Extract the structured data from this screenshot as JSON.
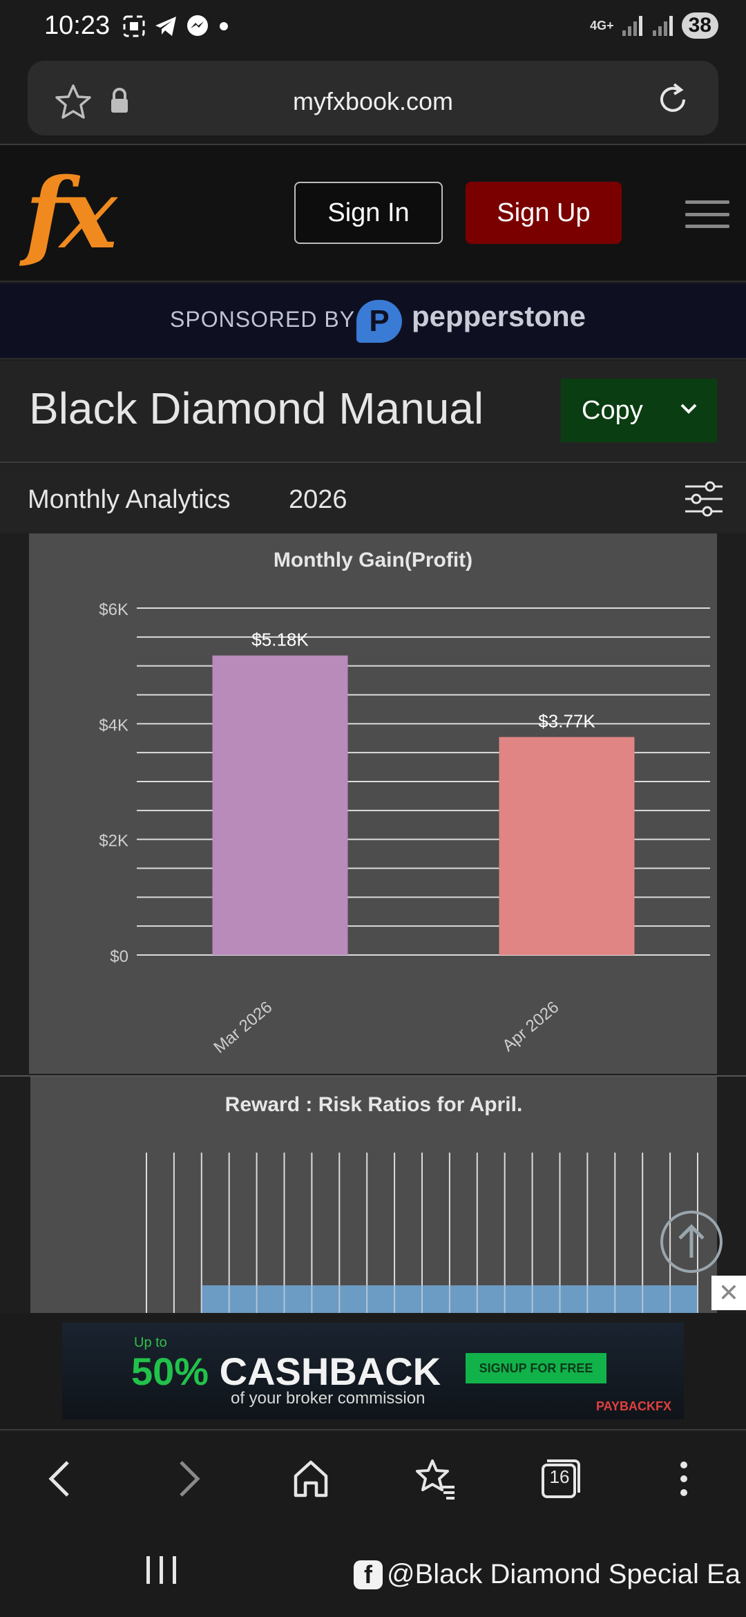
{
  "status": {
    "time": "10:23",
    "network": "4G+",
    "battery": "38"
  },
  "browser": {
    "url": "myfxbook.com",
    "tab_count": "16"
  },
  "header": {
    "logo": "fx",
    "sign_in": "Sign In",
    "sign_up": "Sign Up"
  },
  "sponsor": {
    "label": "SPONSORED BY",
    "brand": "pepperstone"
  },
  "page": {
    "title": "Black Diamond Manual",
    "copy_label": "Copy"
  },
  "analytics": {
    "label": "Monthly Analytics",
    "year": "2026"
  },
  "chart_data": [
    {
      "type": "bar",
      "title": "Monthly Gain(Profit)",
      "categories": [
        "Mar 2026",
        "Apr 2026"
      ],
      "values": [
        5180,
        3770
      ],
      "value_labels": [
        "$5.18K",
        "$3.77K"
      ],
      "ylim": [
        0,
        6000
      ],
      "y_ticks": [
        0,
        2000,
        4000,
        6000
      ],
      "y_tick_labels": [
        "$0",
        "$2K",
        "$4K",
        "$6K"
      ],
      "colors": [
        "#b88bbb",
        "#e08584"
      ],
      "grid": true
    },
    {
      "type": "bar",
      "title": "Reward : Risk Ratios for April.",
      "grid": true,
      "colors": [
        "#6e9fc9"
      ]
    }
  ],
  "ad": {
    "upto": "Up to",
    "headline_green": "50%",
    "headline_white": "CASHBACK",
    "subline": "of your broker commission",
    "cta": "SIGNUP FOR FREE",
    "brand": "PAYBACKFX",
    "close": "✕"
  },
  "watermark": {
    "text": "@Black Diamond Special Ea"
  }
}
